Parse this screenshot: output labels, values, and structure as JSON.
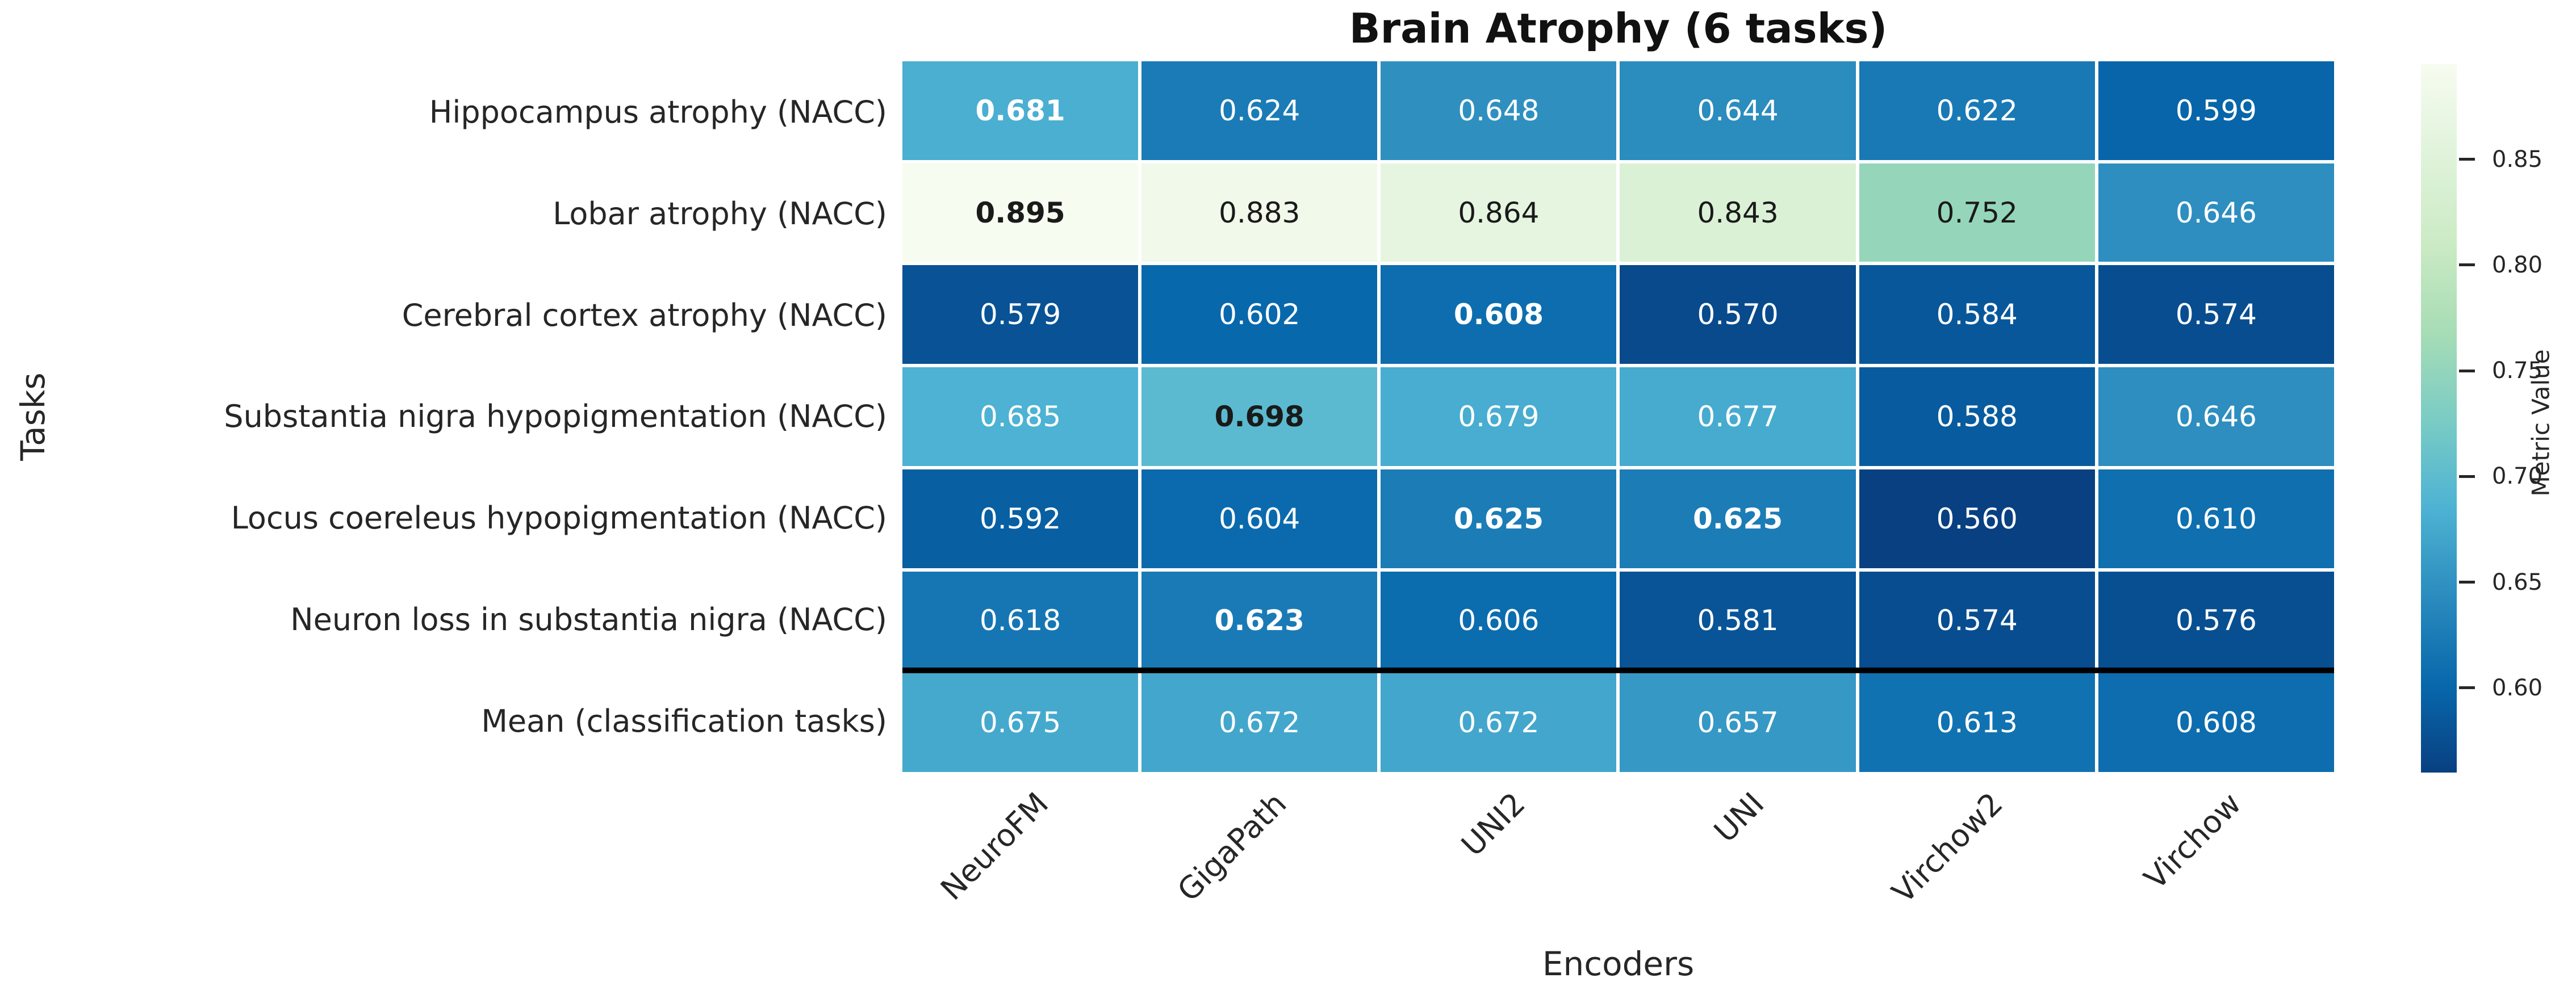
{
  "chart_data": {
    "type": "heatmap",
    "title": "Brain Atrophy (6 tasks)",
    "xlabel": "Encoders",
    "ylabel": "Tasks",
    "columns": [
      "NeuroFM",
      "GigaPath",
      "UNI2",
      "UNI",
      "Virchow2",
      "Virchow"
    ],
    "rows": [
      "Hippocampus atrophy (NACC)",
      "Lobar atrophy (NACC)",
      "Cerebral cortex atrophy (NACC)",
      "Substantia nigra hypopigmentation (NACC)",
      "Locus coereleus hypopigmentation (NACC)",
      "Neuron loss in substantia nigra (NACC)",
      "Mean (classification tasks)"
    ],
    "values": [
      [
        "0.681",
        "0.624",
        "0.648",
        "0.644",
        "0.622",
        "0.599"
      ],
      [
        "0.895",
        "0.883",
        "0.864",
        "0.843",
        "0.752",
        "0.646"
      ],
      [
        "0.579",
        "0.602",
        "0.608",
        "0.570",
        "0.584",
        "0.574"
      ],
      [
        "0.685",
        "0.698",
        "0.679",
        "0.677",
        "0.588",
        "0.646"
      ],
      [
        "0.592",
        "0.604",
        "0.625",
        "0.625",
        "0.560",
        "0.610"
      ],
      [
        "0.618",
        "0.623",
        "0.606",
        "0.581",
        "0.574",
        "0.576"
      ],
      [
        "0.675",
        "0.672",
        "0.672",
        "0.657",
        "0.613",
        "0.608"
      ]
    ],
    "bold_mask": [
      [
        1,
        0,
        0,
        0,
        0,
        0
      ],
      [
        1,
        0,
        0,
        0,
        0,
        0
      ],
      [
        0,
        0,
        1,
        0,
        0,
        0
      ],
      [
        0,
        1,
        0,
        0,
        0,
        0
      ],
      [
        0,
        0,
        1,
        1,
        0,
        0
      ],
      [
        0,
        1,
        0,
        0,
        0,
        0
      ],
      [
        0,
        0,
        0,
        0,
        0,
        0
      ]
    ],
    "separator_after_row_index": 5,
    "colormap": {
      "name": "GnBu_r",
      "vmin": 0.56,
      "vmax": 0.895,
      "stops_low_to_high": [
        "#084081",
        "#0868ac",
        "#2b8cbe",
        "#4eb3d3",
        "#7bccc4",
        "#a8ddb5",
        "#ccebc5",
        "#e0f3db",
        "#f7fcf0"
      ]
    },
    "annotation_colors": {
      "on_dark": "#ffffff",
      "on_light": "#1a1a1a"
    },
    "colorbar": {
      "label": "Metric Value",
      "ticks": [
        "0.85",
        "0.80",
        "0.75",
        "0.70",
        "0.65",
        "0.60"
      ]
    }
  }
}
